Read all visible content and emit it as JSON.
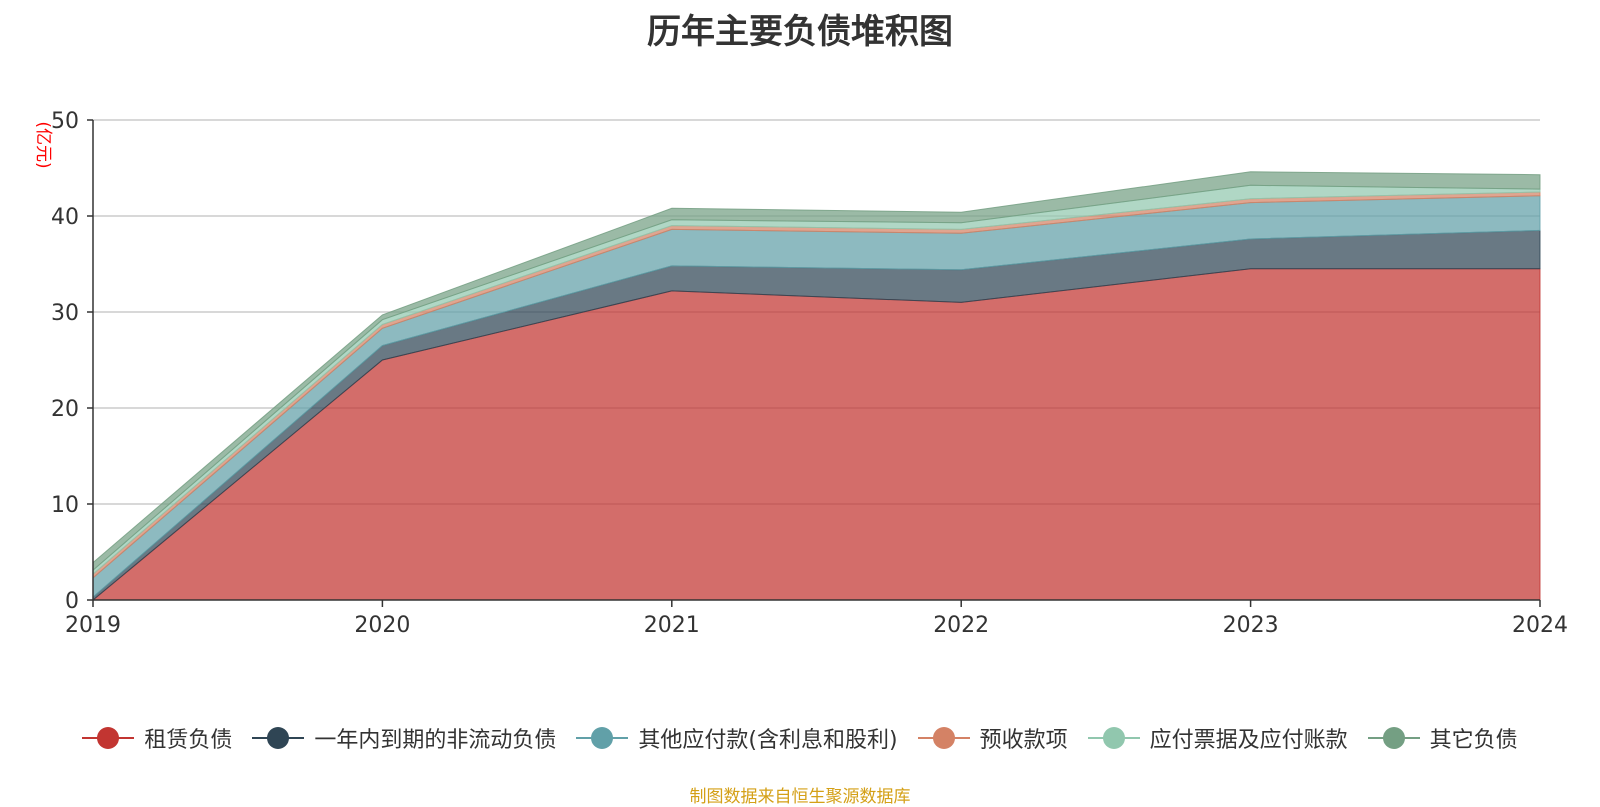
{
  "chart_data": {
    "type": "area",
    "stacked": true,
    "title": "历年主要负债堆积图",
    "ylabel": "(亿元)",
    "ylim": [
      0,
      50
    ],
    "yticks": [
      0,
      10,
      20,
      30,
      40,
      50
    ],
    "categories": [
      "2019",
      "2020",
      "2021",
      "2022",
      "2023",
      "2024"
    ],
    "grid": true,
    "legend_position": "bottom",
    "series": [
      {
        "name": "租赁负债",
        "color": "#c23531",
        "values": [
          0.0,
          25.0,
          32.2,
          31.0,
          34.5,
          34.5
        ]
      },
      {
        "name": "一年内到期的非流动负债",
        "color": "#2f4554",
        "values": [
          0.3,
          1.5,
          2.6,
          3.4,
          3.1,
          4.0
        ]
      },
      {
        "name": "其他应付款(含利息和股利)",
        "color": "#61a0a8",
        "values": [
          2.0,
          1.8,
          3.8,
          3.8,
          3.8,
          3.6
        ]
      },
      {
        "name": "预收款项",
        "color": "#d48265",
        "values": [
          0.4,
          0.4,
          0.4,
          0.4,
          0.4,
          0.4
        ]
      },
      {
        "name": "应付票据及应付账款",
        "color": "#91c7ae",
        "values": [
          0.4,
          0.5,
          0.6,
          0.7,
          1.4,
          0.3
        ]
      },
      {
        "name": "其它负债",
        "color": "#749f83",
        "values": [
          0.8,
          0.5,
          1.2,
          1.1,
          1.4,
          1.5
        ]
      }
    ]
  },
  "source_note": "制图数据来自恒生聚源数据库"
}
